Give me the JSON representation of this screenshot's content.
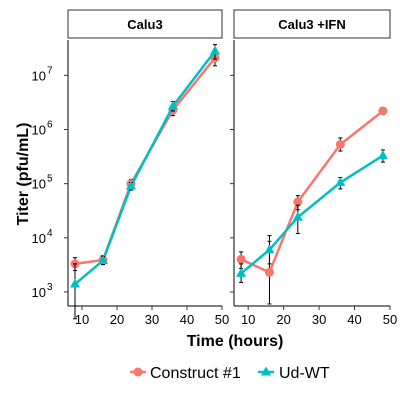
{
  "chart_data": {
    "type": "line",
    "xlabel": "Time (hours)",
    "ylabel": "Titer (pfu/mL)",
    "y_scale": "log10",
    "x_ticks": [
      10,
      20,
      30,
      40,
      50
    ],
    "y_ticks": [
      {
        "value": 1000,
        "base": "10",
        "exp": "3"
      },
      {
        "value": 10000,
        "base": "10",
        "exp": "4"
      },
      {
        "value": 100000,
        "base": "10",
        "exp": "5"
      },
      {
        "value": 1000000,
        "base": "10",
        "exp": "6"
      },
      {
        "value": 10000000,
        "base": "10",
        "exp": "7"
      }
    ],
    "xlim": [
      6,
      50
    ],
    "ylim": [
      550,
      45000000
    ],
    "grid": false,
    "legend_position": "bottom",
    "colors": {
      "Construct #1": "#f8766d",
      "Ud-WT": "#00bfc4"
    },
    "panels": [
      {
        "title": "Calu3",
        "series": [
          {
            "name": "Construct #1",
            "marker": "circle",
            "x": [
              8,
              16,
              24,
              36,
              48
            ],
            "y": [
              3300,
              3900,
              100000,
              2300000,
              21000000
            ],
            "err_low": [
              2500,
              3200,
              82000,
              1800000,
              15000000
            ],
            "err_high": [
              4300,
              4700,
              120000,
              2900000,
              28000000
            ]
          },
          {
            "name": "Ud-WT",
            "marker": "triangle",
            "x": [
              8,
              16,
              24,
              36,
              48
            ],
            "y": [
              1400,
              3800,
              90000,
              2700000,
              28000000
            ],
            "err_low": [
              320,
              3200,
              76000,
              2200000,
              20000000
            ],
            "err_high": [
              3300,
              4500,
              105000,
              3300000,
              37000000
            ]
          }
        ]
      },
      {
        "title": "Calu3 +IFN",
        "series": [
          {
            "name": "Construct #1",
            "marker": "circle",
            "x": [
              8,
              16,
              24,
              36,
              48
            ],
            "y": [
              4000,
              2300,
              46000,
              530000,
              2200000
            ],
            "err_low": [
              2700,
              600,
              33000,
              400000,
              1900000
            ],
            "err_high": [
              5500,
              8600,
              60000,
              700000,
              2500000
            ]
          },
          {
            "name": "Ud-WT",
            "marker": "triangle",
            "x": [
              8,
              16,
              24,
              36,
              48
            ],
            "y": [
              2200,
              6000,
              24000,
              105000,
              330000
            ],
            "err_low": [
              1500,
              3300,
              12000,
              80000,
              250000
            ],
            "err_high": [
              3300,
              11000,
              40000,
              130000,
              420000
            ]
          }
        ]
      }
    ]
  }
}
